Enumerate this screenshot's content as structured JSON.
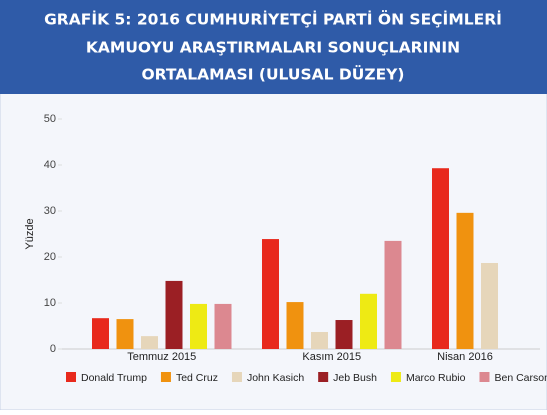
{
  "chart_data": {
    "type": "bar",
    "title_lines": [
      "GRAFİK 5: 2016 CUMHURİYETÇİ PARTİ ÖN SEÇİMLERİ",
      "KAMUOYU ARAŞTIRMALARI SONUÇLARININ",
      "ORTALAMASI (ULUSAL DÜZEY)"
    ],
    "y_label": "Yüzde",
    "categories": [
      "Temmuz 2015",
      "Kasım 2015",
      "Nisan 2016"
    ],
    "series": [
      {
        "name": "Donald Trump",
        "color": "#e8291c",
        "values": [
          6.7,
          23.9,
          39.3
        ]
      },
      {
        "name": "Ted Cruz",
        "color": "#f0920f",
        "values": [
          6.5,
          10.2,
          29.6
        ]
      },
      {
        "name": "John Kasich",
        "color": "#e6d6ba",
        "values": [
          2.8,
          3.7,
          18.7
        ]
      },
      {
        "name": "Jeb Bush",
        "color": "#9b1f24",
        "values": [
          14.8,
          6.3,
          null
        ]
      },
      {
        "name": "Marco Rubio",
        "color": "#eeea14",
        "values": [
          9.8,
          12,
          null
        ]
      },
      {
        "name": "Ben Carson",
        "color": "#dc8890",
        "values": [
          9.8,
          23.5,
          null
        ]
      }
    ],
    "ylim": [
      0,
      50
    ],
    "yticks": [
      0,
      10,
      20,
      30,
      40,
      50
    ],
    "legend": "bottom"
  }
}
